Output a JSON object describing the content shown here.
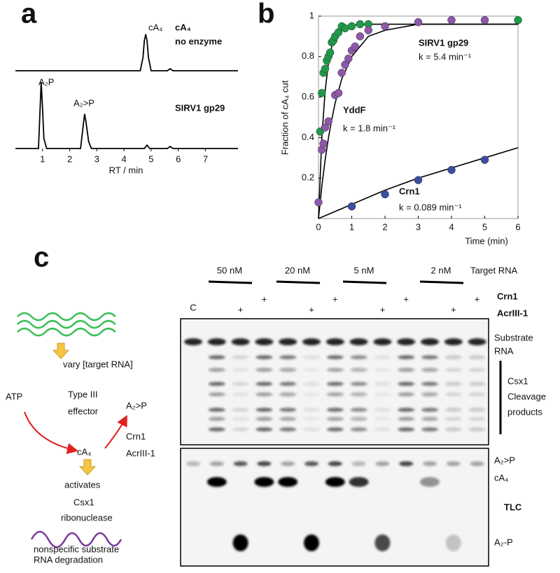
{
  "panel_labels": [
    "a",
    "b",
    "c"
  ],
  "chart_data": [
    {
      "type": "line",
      "x_label": "RT / min",
      "xlim": [
        0,
        8.2
      ],
      "xticks": [
        1,
        2,
        3,
        4,
        5,
        6,
        7
      ],
      "ylim": [
        0,
        100
      ],
      "annotations": [
        "cA₄",
        "A₂P",
        "A₂>P"
      ],
      "series": [
        {
          "label": [
            "cA₄",
            "no enzyme"
          ],
          "color": "#000000",
          "x": [
            0,
            4.6,
            4.7,
            4.75,
            4.8,
            4.85,
            4.9,
            5.0,
            5.6,
            5.7,
            5.8,
            8.2
          ],
          "values": [
            0,
            0,
            20,
            45,
            55,
            45,
            20,
            0,
            0,
            3,
            0,
            0
          ]
        },
        {
          "label": [
            "SIRV1 gp29"
          ],
          "color": "#000000",
          "x": [
            0,
            0.85,
            0.9,
            0.95,
            1.0,
            1.05,
            1.15,
            2.4,
            2.5,
            2.55,
            2.6,
            2.7,
            2.8,
            4.75,
            4.85,
            4.95,
            5.6,
            5.7,
            5.8,
            8.2
          ],
          "values": [
            0,
            0,
            50,
            100,
            60,
            15,
            0,
            0,
            35,
            52,
            40,
            10,
            0,
            0,
            5,
            0,
            0,
            3,
            0,
            0
          ]
        }
      ]
    },
    {
      "type": "scatter",
      "x_label": "Time (min)",
      "y_label": "Fraction of cA₄ cut",
      "xlim": [
        0,
        6
      ],
      "ylim": [
        0,
        1
      ],
      "xticks": [
        0,
        1,
        2,
        3,
        4,
        5,
        6
      ],
      "yticks": [
        0.2,
        0.4,
        0.6,
        0.8,
        1
      ],
      "series": [
        {
          "name": "SIRV1 gp29",
          "rate_label": "k = 5.4 min⁻¹",
          "color": "#1f9a4a",
          "x": [
            0.05,
            0.1,
            0.15,
            0.2,
            0.25,
            0.3,
            0.35,
            0.4,
            0.45,
            0.5,
            0.6,
            0.7,
            0.8,
            1.0,
            1.25,
            1.5,
            6
          ],
          "values": [
            0.43,
            0.62,
            0.72,
            0.74,
            0.78,
            0.8,
            0.82,
            0.87,
            0.88,
            0.9,
            0.92,
            0.95,
            0.94,
            0.95,
            0.96,
            0.96,
            0.98
          ],
          "fit_x": [
            0,
            0.1,
            0.2,
            0.3,
            0.4,
            0.5,
            0.7,
            1,
            1.5,
            2,
            3,
            6
          ],
          "fit_values": [
            0,
            0.4,
            0.63,
            0.77,
            0.85,
            0.89,
            0.94,
            0.955,
            0.96,
            0.96,
            0.96,
            0.96
          ]
        },
        {
          "name": "YddF",
          "rate_label": "k = 1.8 min⁻¹",
          "color": "#8e57a8",
          "x": [
            0,
            0.1,
            0.15,
            0.2,
            0.3,
            0.5,
            0.6,
            0.7,
            0.8,
            0.9,
            1.0,
            1.1,
            1.25,
            1.5,
            2,
            3,
            4,
            5
          ],
          "values": [
            0.08,
            0.34,
            0.37,
            0.45,
            0.48,
            0.61,
            0.62,
            0.72,
            0.76,
            0.79,
            0.83,
            0.85,
            0.9,
            0.93,
            0.95,
            0.97,
            0.98,
            0.98
          ],
          "fit_x": [
            0,
            0.1,
            0.2,
            0.3,
            0.4,
            0.5,
            0.7,
            1,
            1.5,
            2,
            3,
            6
          ],
          "fit_values": [
            0,
            0.16,
            0.29,
            0.4,
            0.49,
            0.57,
            0.69,
            0.8,
            0.9,
            0.93,
            0.96,
            0.96
          ]
        },
        {
          "name": "Crn1",
          "rate_label": "k = 0.089 min⁻¹",
          "color": "#3a4fa0",
          "x": [
            1,
            2,
            3,
            4,
            5
          ],
          "values": [
            0.06,
            0.12,
            0.19,
            0.24,
            0.29
          ],
          "fit_x": [
            0,
            1,
            2,
            3,
            4,
            5,
            6
          ],
          "fit_values": [
            0,
            0.07,
            0.14,
            0.2,
            0.25,
            0.3,
            0.35
          ]
        }
      ]
    }
  ],
  "gel": {
    "concentrations": [
      "50 nM",
      "20 nM",
      "5 nM",
      "2 nM"
    ],
    "target_label": "Target RNA",
    "rows": [
      "Crn1",
      "AcrIII-1"
    ],
    "control": "C",
    "plus": "+",
    "substrate_label": [
      "Substrate",
      "RNA"
    ],
    "products_label": [
      "Csx1",
      "Cleavage",
      "products"
    ],
    "tlc_labels": [
      "A₂>P",
      "cA₄",
      "TLC",
      "A₂-P"
    ]
  },
  "diagram": {
    "vary": "vary [target RNA]",
    "atp": "ATP",
    "effector": [
      "Type III",
      "effector"
    ],
    "product": "A₂>P",
    "signal": "cA₄",
    "inhibitors": [
      "Crn1",
      "AcrIII-1"
    ],
    "activates": "activates",
    "csx1": "Csx1",
    "ribonuclease": "ribonuclease",
    "outcome": [
      "nonspecific substrate",
      "RNA degradation"
    ]
  }
}
